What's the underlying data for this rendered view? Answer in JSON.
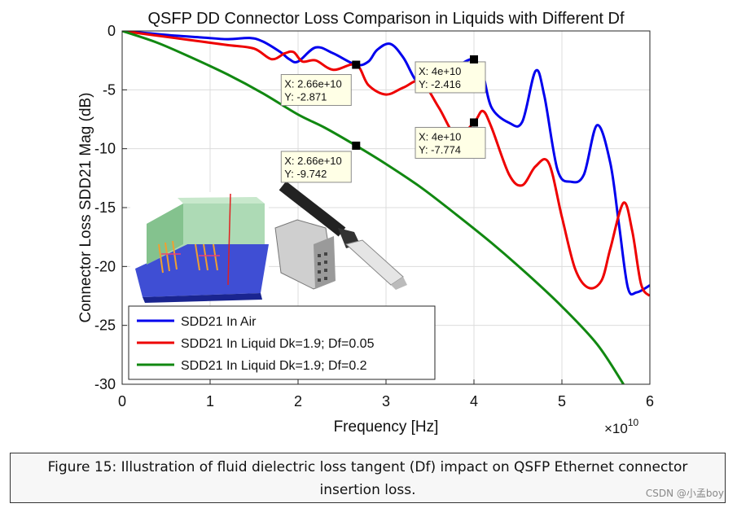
{
  "chart_data": {
    "type": "line",
    "title": "QSFP DD Connector Loss Comparison in Liquids with Different Df",
    "xlabel": "Frequency [Hz]",
    "ylabel": "Connector Loss SDD21 Mag (dB)",
    "x_exponent": "×10",
    "x_exponent_power": "10",
    "xlim": [
      0,
      6
    ],
    "ylim": [
      -30,
      0
    ],
    "xticks": [
      0,
      1,
      2,
      3,
      4,
      5,
      6
    ],
    "yticks": [
      0,
      -5,
      -10,
      -15,
      -20,
      -25,
      -30
    ],
    "grid": true,
    "legend_position": "bottom-left",
    "series": [
      {
        "name": "SDD21 In Air",
        "color": "#0000ee",
        "x": [
          0,
          0.3,
          0.6,
          0.9,
          1.2,
          1.45,
          1.6,
          1.8,
          1.9,
          2.0,
          2.2,
          2.4,
          2.66,
          2.8,
          2.9,
          3.05,
          3.2,
          3.35,
          3.5,
          3.7,
          3.85,
          4.0,
          4.1,
          4.2,
          4.4,
          4.55,
          4.7,
          4.8,
          4.95,
          5.1,
          5.25,
          5.4,
          5.55,
          5.65,
          5.75,
          5.85,
          6.0
        ],
        "y": [
          0,
          -0.2,
          -0.4,
          -0.55,
          -0.7,
          -0.6,
          -0.9,
          -1.8,
          -2.4,
          -2.6,
          -1.4,
          -1.9,
          -2.871,
          -2.6,
          -1.6,
          -1.1,
          -2.3,
          -4.3,
          -4.6,
          -3.4,
          -2.8,
          -2.416,
          -3.6,
          -6.5,
          -7.8,
          -7.7,
          -3.4,
          -5.5,
          -11.8,
          -12.8,
          -12.2,
          -8.0,
          -11.2,
          -16.5,
          -21.8,
          -22.2,
          -21.6
        ]
      },
      {
        "name": "SDD21 In Liquid Dk=1.9; Df=0.05",
        "color": "#ee0000",
        "x": [
          0,
          0.3,
          0.6,
          0.9,
          1.2,
          1.5,
          1.7,
          1.85,
          1.95,
          2.05,
          2.2,
          2.4,
          2.66,
          2.8,
          3.0,
          3.2,
          3.4,
          3.6,
          3.8,
          4.0,
          4.1,
          4.2,
          4.4,
          4.55,
          4.7,
          4.85,
          5.0,
          5.15,
          5.3,
          5.45,
          5.55,
          5.7,
          5.8,
          5.9,
          6.0
        ],
        "y": [
          0,
          -0.3,
          -0.6,
          -0.9,
          -1.2,
          -1.5,
          -2.4,
          -1.9,
          -1.8,
          -2.6,
          -2.5,
          -3.3,
          -2.871,
          -4.6,
          -5.4,
          -4.8,
          -4.3,
          -6.5,
          -8.9,
          -7.774,
          -6.8,
          -8.2,
          -12.2,
          -13.1,
          -11.5,
          -11.2,
          -15.8,
          -20.2,
          -21.8,
          -21.2,
          -18.5,
          -14.6,
          -17.0,
          -21.5,
          -22.5
        ]
      },
      {
        "name": "SDD21 In Liquid Dk=1.9; Df=0.2",
        "color": "#118811",
        "x": [
          0,
          0.4,
          0.8,
          1.2,
          1.6,
          2.0,
          2.3,
          2.66,
          3.0,
          3.4,
          3.8,
          4.2,
          4.6,
          5.0,
          5.4,
          5.7
        ],
        "y": [
          0,
          -1.0,
          -2.3,
          -3.7,
          -5.3,
          -7.1,
          -8.2,
          -9.742,
          -11.3,
          -13.3,
          -15.6,
          -18.0,
          -20.6,
          -23.4,
          -26.6,
          -30.0
        ]
      }
    ],
    "annotations": [
      {
        "line1": "X: 2.66e+10",
        "line2": "Y: -2.871",
        "x": 2.66,
        "y": -2.871
      },
      {
        "line1": "X: 4e+10",
        "line2": "Y: -2.416",
        "x": 4.0,
        "y": -2.416
      },
      {
        "line1": "X: 4e+10",
        "line2": "Y: -7.774",
        "x": 4.0,
        "y": -7.774
      },
      {
        "line1": "X: 2.66e+10",
        "line2": "Y: -9.742",
        "x": 2.66,
        "y": -9.742
      }
    ]
  },
  "caption": {
    "line1": "Figure 15: Illustration of fluid dielectric loss tangent (Df) impact on QSFP Ethernet connector",
    "line2": "insertion loss."
  },
  "watermark": "CSDN @小孟boy"
}
